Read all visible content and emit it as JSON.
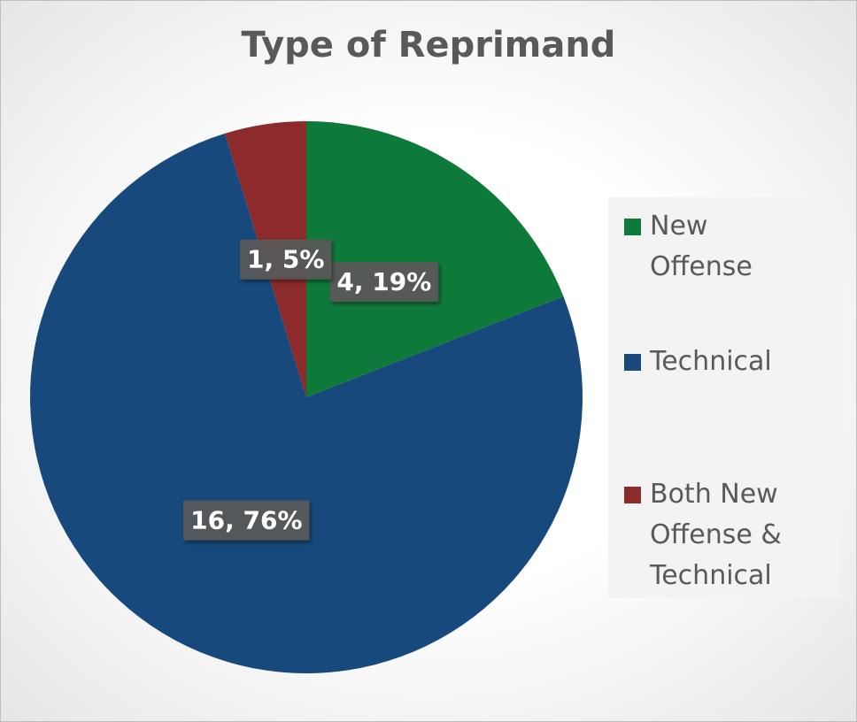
{
  "chart_data": {
    "type": "pie",
    "title": "Type of Reprimand",
    "categories": [
      "New Offense",
      "Technical",
      "Both New Offense & Technical"
    ],
    "values": [
      4,
      16,
      1
    ],
    "value_labels": [
      "4, 19%",
      "16, 76%",
      "1, 5%"
    ],
    "colors": [
      "#0e7a3a",
      "#17497c",
      "#8d2a2b"
    ],
    "legend": "right"
  }
}
